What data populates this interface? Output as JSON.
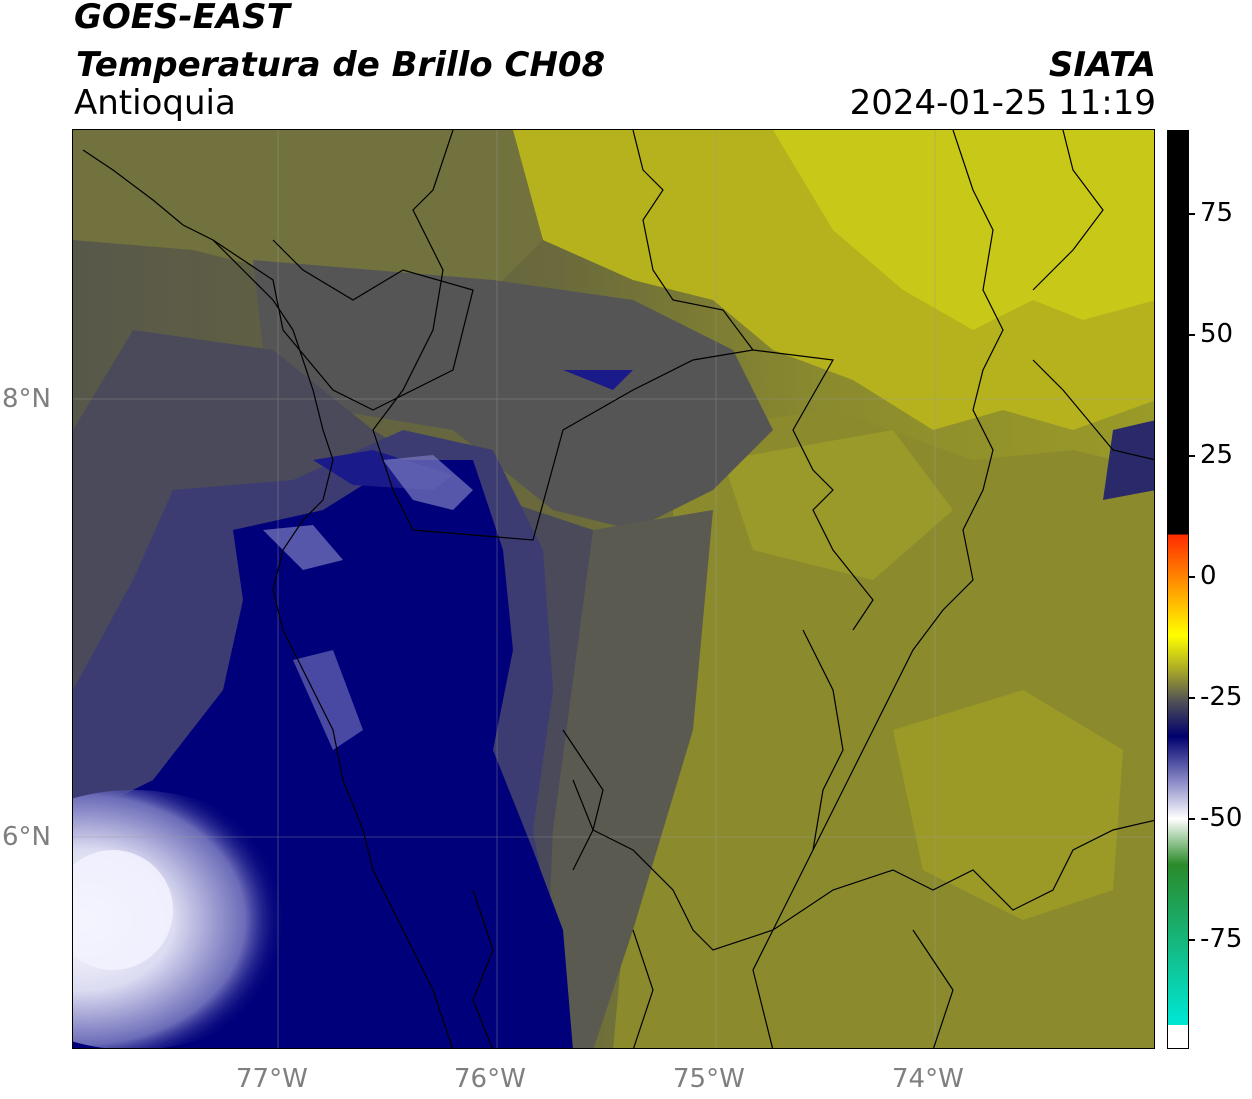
{
  "header": {
    "satellite": "GOES-EAST",
    "product": "Temperatura de Brillo CH08",
    "region": "Antioquia",
    "institution": "SIATA",
    "datetime": "2024-01-25 11:19"
  },
  "axes": {
    "longitude_labels": [
      "77°W",
      "76°W",
      "75°W",
      "74°W"
    ],
    "latitude_labels": [
      "8°N",
      "6°N"
    ]
  },
  "colorbar": {
    "labels": [
      "75",
      "50",
      "25",
      "0",
      "-25",
      "-50",
      "-75"
    ],
    "colors": {
      "black_band": "#000000",
      "red": "#ff2a00",
      "orange": "#ff8c00",
      "yellow": "#ffff00",
      "olive": "#a3a32a",
      "gray": "#555555",
      "navy": "#00006e",
      "lavender": "#8c8cc8",
      "white": "#ffffff",
      "green": "#2a8a2a",
      "cyan": "#00e5d2"
    }
  },
  "map_colors": {
    "navy": "#00007a",
    "blue_gray": "#3c3c72",
    "gray": "#555555",
    "olive_dark": "#6a6a3c",
    "olive": "#8b8b2e",
    "yellow_olive": "#b5b21e",
    "yellow": "#c8c818",
    "white": "#eeeeff"
  }
}
